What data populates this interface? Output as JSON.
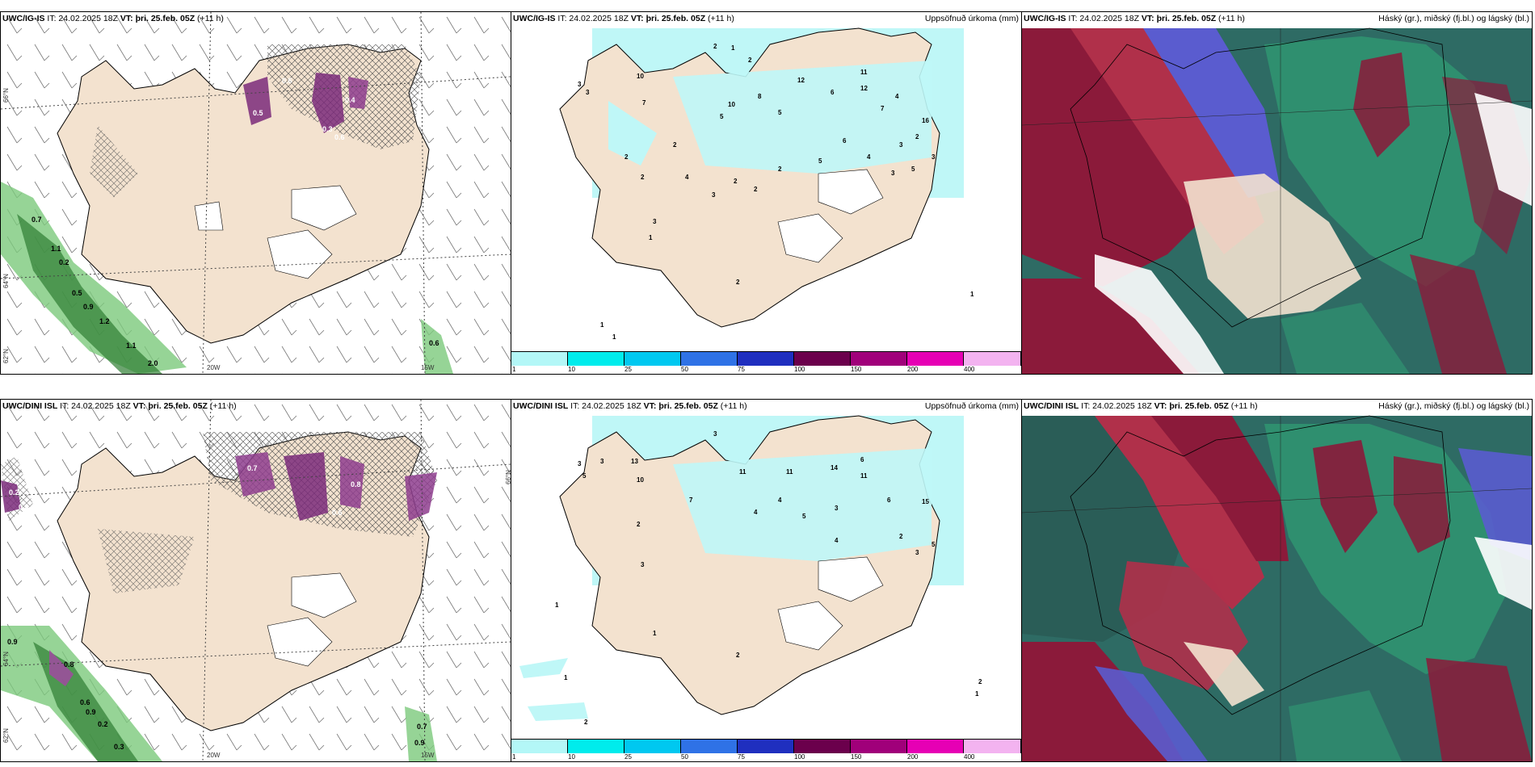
{
  "panels": {
    "r1c1": {
      "model": "UWC/IG-IS",
      "it": "IT: 24.02.2025 18Z",
      "vt": "VT: þri. 25.feb. 05Z",
      "lead": "(+11 h)",
      "title_right": ""
    },
    "r1c2": {
      "model": "UWC/IG-IS",
      "it": "IT: 24.02.2025 18Z",
      "vt": "VT: þri. 25.feb. 05Z",
      "lead": "(+11 h)",
      "title_right": "Uppsöfnuð úrkoma (mm)"
    },
    "r1c3": {
      "model": "UWC/IG-IS",
      "it": "IT: 24.02.2025 18Z",
      "vt": "VT: þri. 25.feb. 05Z",
      "lead": "(+11 h)",
      "title_right": "Háský (gr.), miðský (fj.bl.) og lágský (bl.)"
    },
    "r2c1": {
      "model": "UWC/DINI ISL",
      "it": "IT: 24.02.2025 18Z",
      "vt": "VT: þri. 25.feb. 05Z",
      "lead": "(+11 h)",
      "title_right": ""
    },
    "r2c2": {
      "model": "UWC/DINI ISL",
      "it": "IT: 24.02.2025 18Z",
      "vt": "VT: þri. 25.feb. 05Z",
      "lead": "(+11 h)",
      "title_right": "Uppsöfnuð úrkoma (mm)"
    },
    "r2c3": {
      "model": "UWC/DINI ISL",
      "it": "IT: 24.02.2025 18Z",
      "vt": "VT: þri. 25.feb. 05Z",
      "lead": "(+11 h)",
      "title_right": "Háský (gr.), miðský (fj.bl.) og lágský (bl.)"
    }
  },
  "axes": {
    "lat66": "66°N",
    "lat64": "64°N",
    "lat62": "62°N",
    "lon20": "20W",
    "lon15": "15W"
  },
  "colorbar": {
    "ticks": [
      "1",
      "10",
      "25",
      "50",
      "75",
      "100",
      "150",
      "200",
      "400"
    ],
    "colors": [
      "#b3f7f7",
      "#00ecec",
      "#00c8f0",
      "#2f72e6",
      "#1f2fbf",
      "#6b004c",
      "#a0007a",
      "#e600b4",
      "#f3b3f0"
    ]
  },
  "wind_panel_labels": {
    "r1": [
      "0.7",
      "1.1",
      "0.2",
      "0.5",
      "0.9",
      "1.2",
      "1.1",
      "2.0",
      "0.6",
      "0.6",
      "0.4",
      "0.3",
      "0.6",
      "0.5"
    ],
    "r2": [
      "0.2",
      "0.3",
      "0.9",
      "0.8",
      "0.6",
      "0.9",
      "0.2",
      "0.3",
      "0.7",
      "0.9",
      "0.8",
      "0.6",
      "0.7"
    ]
  },
  "precip_labels": {
    "r1": [
      "2",
      "1",
      "2",
      "10",
      "3",
      "3",
      "7",
      "5",
      "10",
      "8",
      "5",
      "12",
      "6",
      "11",
      "12",
      "7",
      "4",
      "16",
      "2",
      "3",
      "5",
      "2",
      "2",
      "4",
      "3",
      "2",
      "2",
      "6",
      "4",
      "3",
      "5",
      "3",
      "3",
      "1",
      "2",
      "2",
      "2",
      "1",
      "1",
      "1"
    ],
    "r2": [
      "3",
      "5",
      "3",
      "13",
      "10",
      "11",
      "11",
      "14",
      "11",
      "6",
      "15",
      "3",
      "7",
      "4",
      "4",
      "5",
      "3",
      "6",
      "2",
      "3",
      "5",
      "4",
      "2",
      "3",
      "1",
      "1",
      "2",
      "2",
      "1",
      "1",
      "2"
    ]
  },
  "colors": {
    "land": "#f3e2cf",
    "sea": "#ffffff",
    "cyan": "#bff7f7",
    "accent_cloud_red": "#8b1a3a",
    "accent_cloud_teal": "#2e8b7a"
  }
}
